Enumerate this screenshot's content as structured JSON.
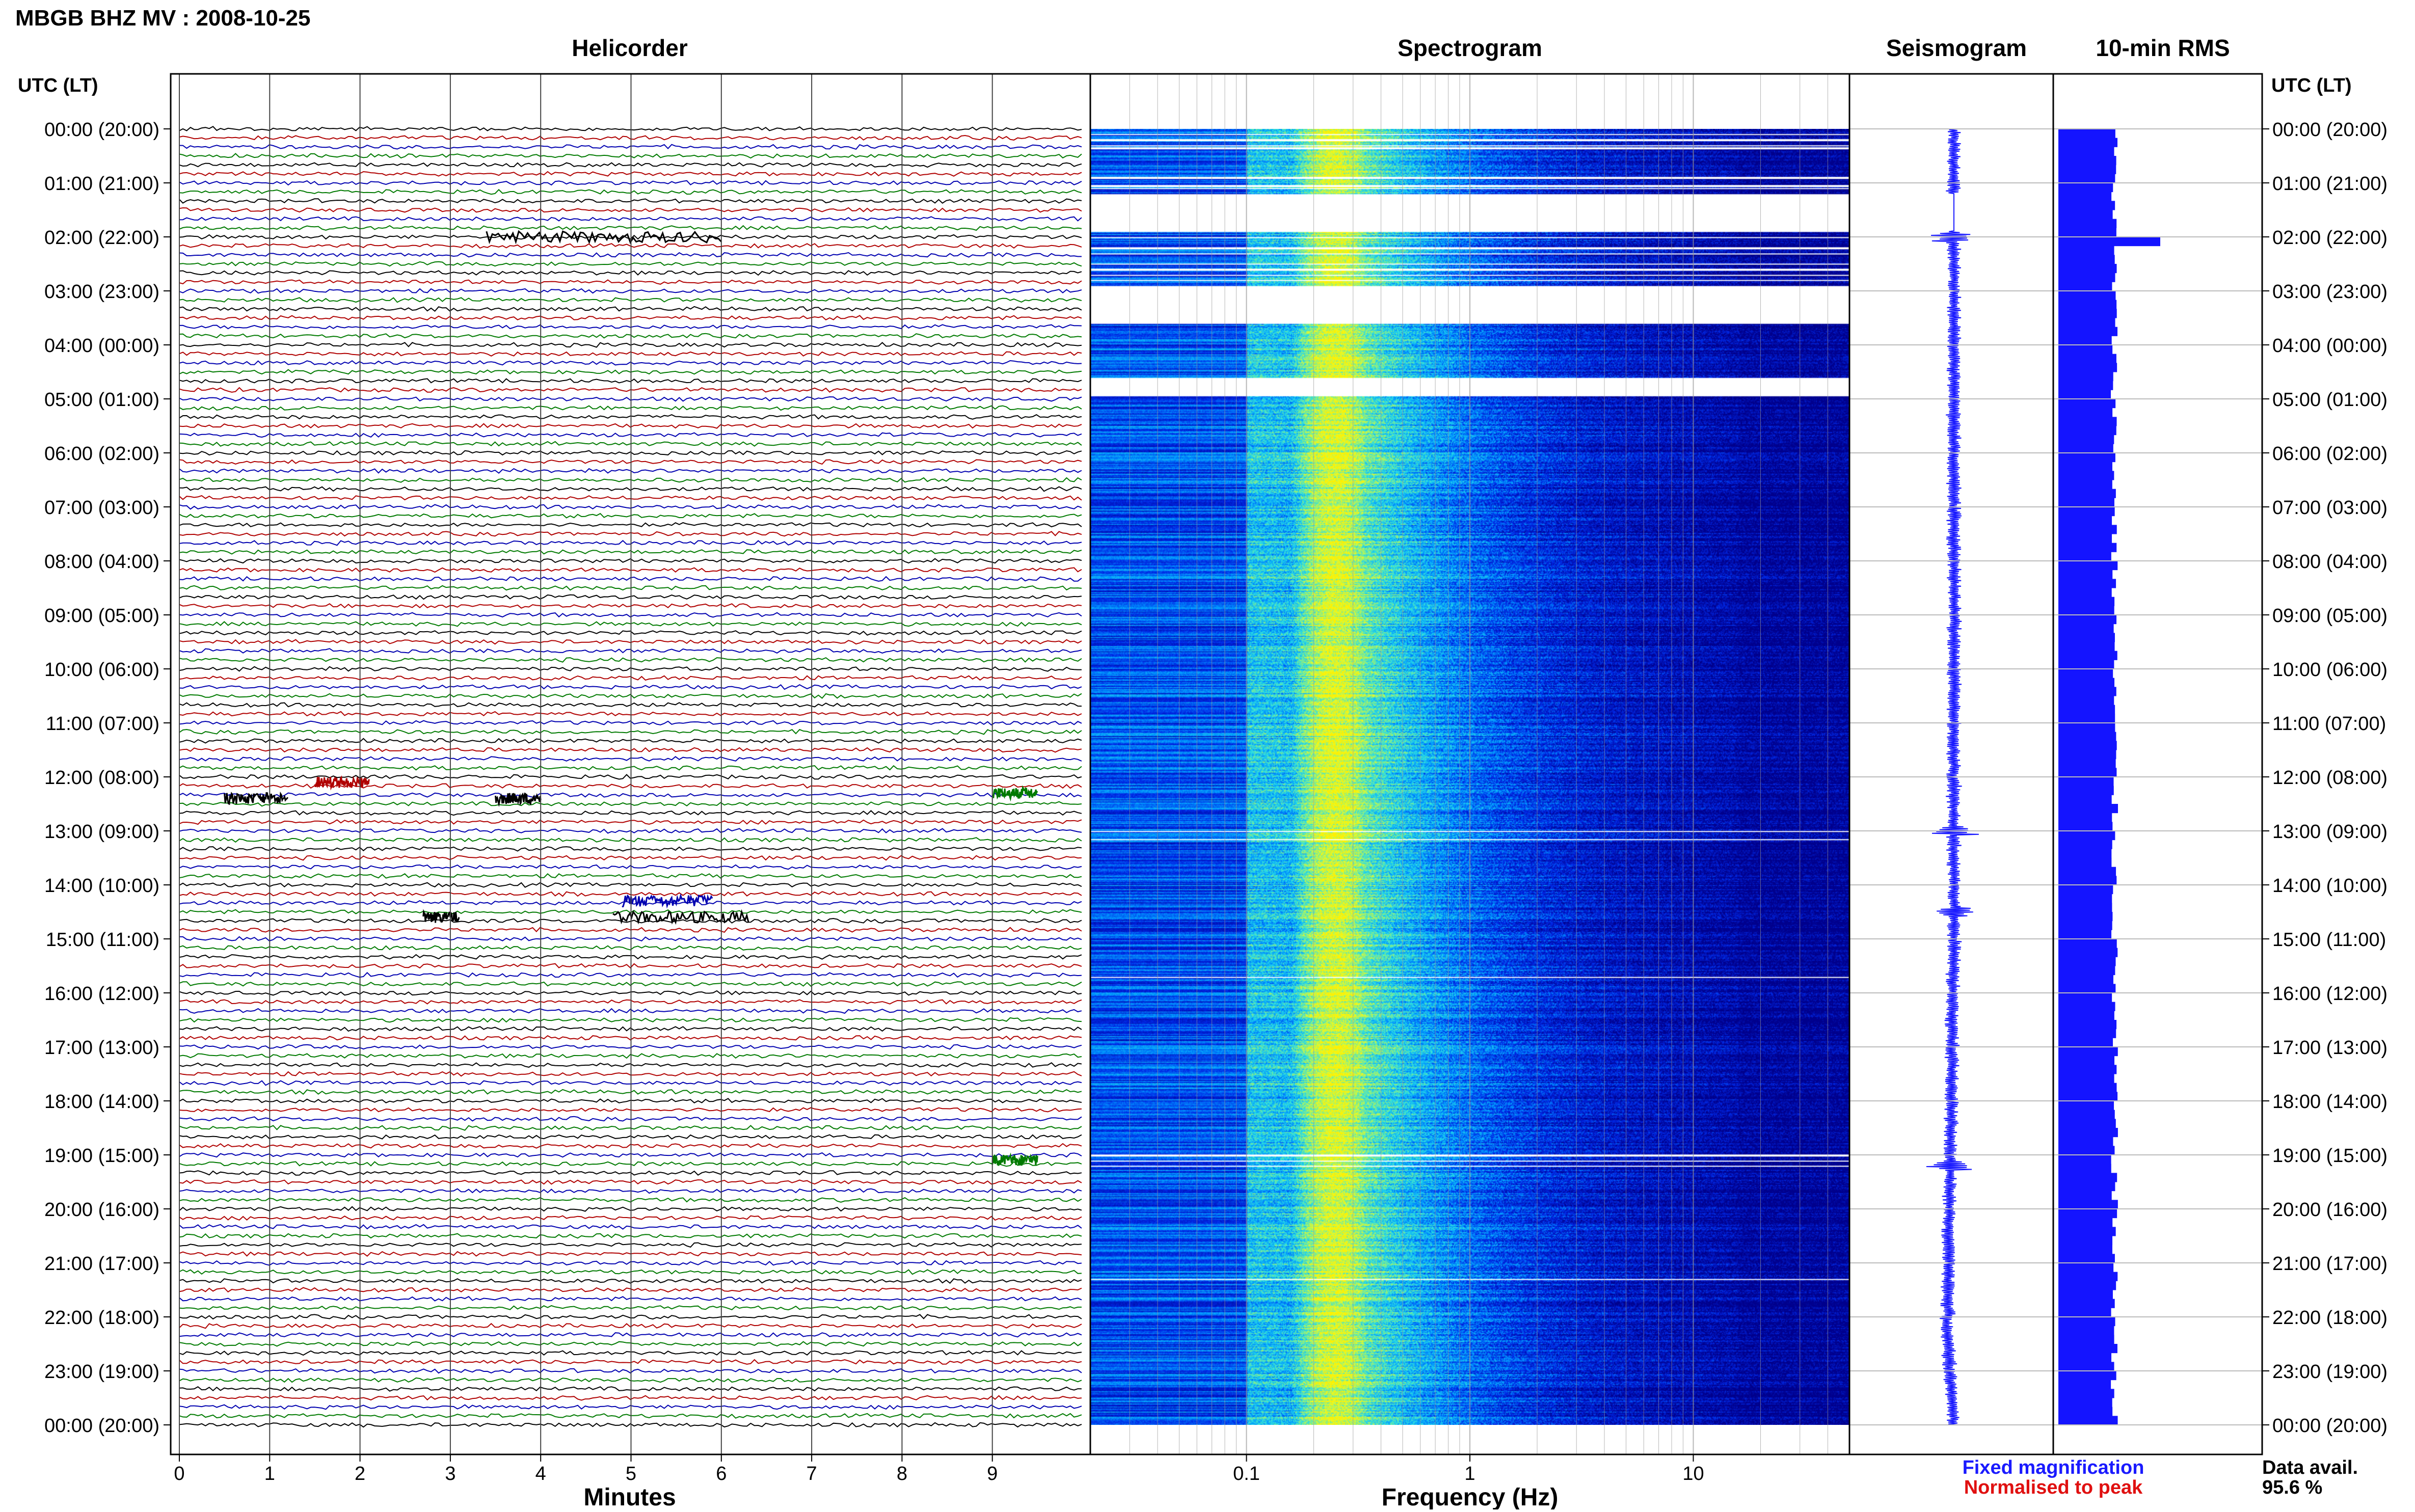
{
  "header": {
    "station_title": "MBGB BHZ MV : 2008-10-25",
    "utc_label_left": "UTC (LT)",
    "utc_label_right": "UTC (LT)"
  },
  "panels": {
    "helicorder_title": "Helicorder",
    "spectrogram_title": "Spectrogram",
    "seismogram_title": "Seismogram",
    "rms_title": "10-min RMS"
  },
  "axes": {
    "helicorder_xlabel": "Minutes",
    "spectrogram_xlabel": "Frequency (Hz)"
  },
  "footer": {
    "fixed_magnification": "Fixed magnification",
    "normalised_to_peak": "Normalised to peak",
    "data_avail_label": "Data avail.",
    "data_avail_value": "95.6 %"
  },
  "colors": {
    "trace_colors": [
      "#000000",
      "#b00000",
      "#0000b0",
      "#007a00"
    ],
    "seismogram": "#1a1aff",
    "rms": "#1414ff",
    "fixed_magnification": "#1a1aff",
    "normalised_to_peak": "#e01010"
  },
  "chart_data": [
    {
      "type": "line",
      "panel": "Helicorder",
      "title": "Helicorder",
      "xlabel": "Minutes",
      "x_ticks": [
        0,
        1,
        2,
        3,
        4,
        5,
        6,
        7,
        8,
        9
      ],
      "xlim": [
        0,
        10
      ],
      "line_minutes": 10,
      "lines_per_day": 144,
      "hour_labels": [
        "00:00 (20:00)",
        "01:00 (21:00)",
        "02:00 (22:00)",
        "03:00 (23:00)",
        "04:00 (00:00)",
        "05:00 (01:00)",
        "06:00 (02:00)",
        "07:00 (03:00)",
        "08:00 (04:00)",
        "09:00 (05:00)",
        "10:00 (06:00)",
        "11:00 (07:00)",
        "12:00 (08:00)",
        "13:00 (09:00)",
        "14:00 (10:00)",
        "15:00 (11:00)",
        "16:00 (12:00)",
        "17:00 (13:00)",
        "18:00 (14:00)",
        "19:00 (15:00)",
        "20:00 (16:00)",
        "21:00 (17:00)",
        "22:00 (18:00)",
        "23:00 (19:00)",
        "00:00 (20:00)"
      ],
      "events": [
        {
          "hour": 2.0,
          "start_min": 3.4,
          "end_min": 6.0,
          "color_index": 0
        },
        {
          "hour": 12.1,
          "start_min": 1.5,
          "end_min": 2.1,
          "color_index": 1
        },
        {
          "hour": 12.4,
          "start_min": 0.5,
          "end_min": 1.2,
          "color_index": 0
        },
        {
          "hour": 12.4,
          "start_min": 3.5,
          "end_min": 4.0,
          "color_index": 0
        },
        {
          "hour": 12.3,
          "start_min": 9.0,
          "end_min": 9.5,
          "color_index": 3
        },
        {
          "hour": 14.3,
          "start_min": 4.9,
          "end_min": 5.9,
          "color_index": 2
        },
        {
          "hour": 14.6,
          "start_min": 2.7,
          "end_min": 3.1,
          "color_index": 0
        },
        {
          "hour": 14.6,
          "start_min": 4.8,
          "end_min": 6.3,
          "color_index": 0
        },
        {
          "hour": 19.1,
          "start_min": 9.0,
          "end_min": 9.5,
          "color_index": 3
        }
      ]
    },
    {
      "type": "heatmap",
      "panel": "Spectrogram",
      "title": "Spectrogram",
      "xlabel": "Frequency (Hz)",
      "x_scale": "log",
      "xlim": [
        0.02,
        50
      ],
      "x_ticks": [
        0.1,
        1,
        10
      ],
      "x_tick_labels": [
        "0.1",
        "1",
        "10"
      ],
      "peak_frequency_hz": 0.25,
      "data_gap_rows_hours": [
        0.1,
        0.2,
        0.3,
        0.35,
        0.9,
        1.05,
        1.1,
        2.0,
        2.2,
        2.3,
        2.5,
        2.6,
        2.7,
        2.8,
        13.0,
        13.15,
        15.7,
        19.0,
        19.1,
        19.2,
        21.3
      ],
      "data_gaps_hours": [
        [
          1.2,
          1.9
        ],
        [
          2.9,
          3.6
        ],
        [
          4.6,
          4.95
        ]
      ]
    },
    {
      "type": "line",
      "panel": "Seismogram",
      "title": "Seismogram",
      "transient_hours": [
        2.0,
        13.0,
        14.5,
        19.2
      ]
    },
    {
      "type": "bar",
      "panel": "10-min RMS",
      "title": "10-min RMS",
      "peak_hours": [
        2.0
      ],
      "data_availability_percent": 95.6
    }
  ]
}
